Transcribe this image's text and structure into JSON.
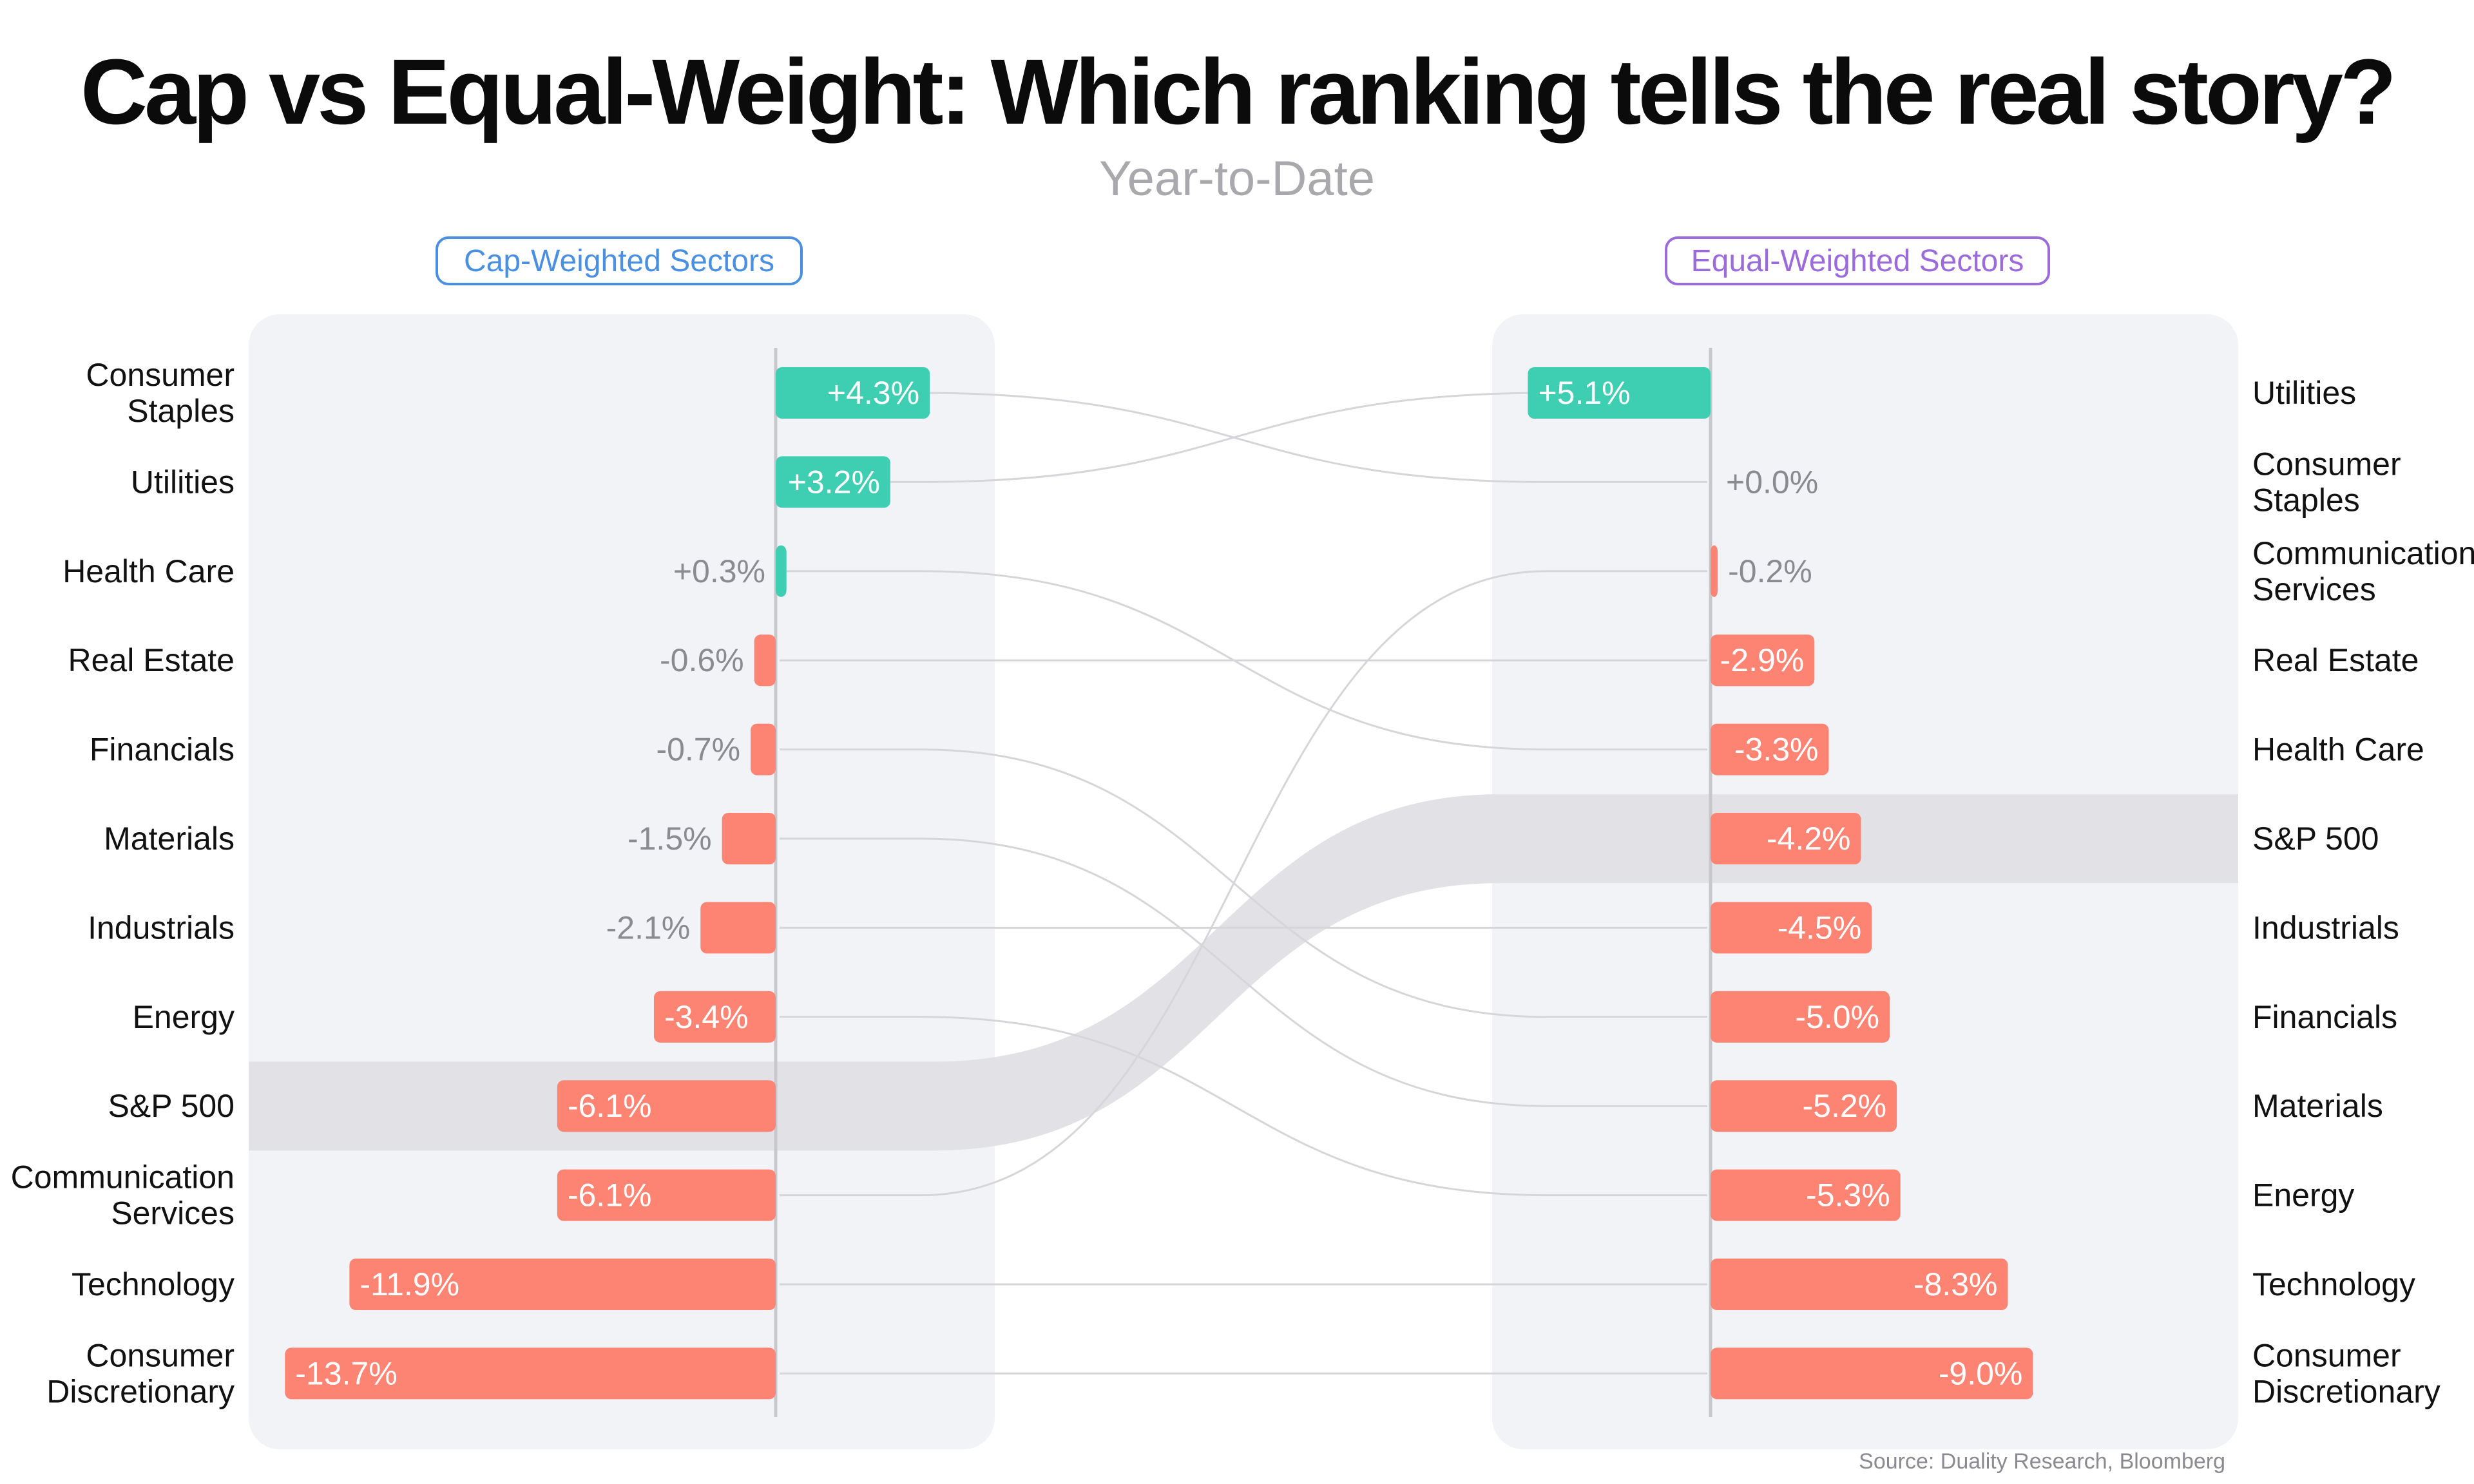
{
  "header": {
    "title": "Cap vs Equal-Weight: Which ranking tells the real story?",
    "subtitle": "Year-to-Date"
  },
  "panels": {
    "left_title": "Cap-Weighted Sectors",
    "right_title": "Equal-Weighted Sectors"
  },
  "footer": {
    "source": "Source: Duality Research, Bloomberg"
  },
  "colors": {
    "positive": "#3ecfb2",
    "negative": "#fd8473",
    "panel_bg": "#f1f3f6",
    "highlight": "#e2e2e6",
    "connector": "#d6d6da",
    "axis": "#c8c8cc",
    "outside_label": "#8a8a90"
  },
  "chart_data": {
    "type": "bar",
    "unit": "%",
    "highlight": "S&P 500",
    "left": {
      "title": "Cap-Weighted Sectors",
      "rows": [
        {
          "category": "Consumer Staples",
          "lines": [
            "Consumer",
            "Staples"
          ],
          "value": 4.3,
          "label": "+4.3%"
        },
        {
          "category": "Utilities",
          "lines": [
            "Utilities"
          ],
          "value": 3.2,
          "label": "+3.2%"
        },
        {
          "category": "Health Care",
          "lines": [
            "Health Care"
          ],
          "value": 0.3,
          "label": "+0.3%"
        },
        {
          "category": "Real Estate",
          "lines": [
            "Real Estate"
          ],
          "value": -0.6,
          "label": "-0.6%"
        },
        {
          "category": "Financials",
          "lines": [
            "Financials"
          ],
          "value": -0.7,
          "label": "-0.7%"
        },
        {
          "category": "Materials",
          "lines": [
            "Materials"
          ],
          "value": -1.5,
          "label": "-1.5%"
        },
        {
          "category": "Industrials",
          "lines": [
            "Industrials"
          ],
          "value": -2.1,
          "label": "-2.1%"
        },
        {
          "category": "Energy",
          "lines": [
            "Energy"
          ],
          "value": -3.4,
          "label": "-3.4%"
        },
        {
          "category": "S&P 500",
          "lines": [
            "S&P 500"
          ],
          "value": -6.1,
          "label": "-6.1%"
        },
        {
          "category": "Communication Services",
          "lines": [
            "Communication",
            "Services"
          ],
          "value": -6.1,
          "label": "-6.1%"
        },
        {
          "category": "Technology",
          "lines": [
            "Technology"
          ],
          "value": -11.9,
          "label": "-11.9%"
        },
        {
          "category": "Consumer Discretionary",
          "lines": [
            "Consumer",
            "Discretionary"
          ],
          "value": -13.7,
          "label": "-13.7%"
        }
      ]
    },
    "right": {
      "title": "Equal-Weighted Sectors",
      "rows": [
        {
          "category": "Utilities",
          "lines": [
            "Utilities"
          ],
          "value": 5.1,
          "label": "+5.1%"
        },
        {
          "category": "Consumer Staples",
          "lines": [
            "Consumer",
            "Staples"
          ],
          "value": 0.0,
          "label": "+0.0%"
        },
        {
          "category": "Communication Services",
          "lines": [
            "Communication",
            "Services"
          ],
          "value": -0.2,
          "label": "-0.2%"
        },
        {
          "category": "Real Estate",
          "lines": [
            "Real Estate"
          ],
          "value": -2.9,
          "label": "-2.9%"
        },
        {
          "category": "Health Care",
          "lines": [
            "Health Care"
          ],
          "value": -3.3,
          "label": "-3.3%"
        },
        {
          "category": "S&P 500",
          "lines": [
            "S&P 500"
          ],
          "value": -4.2,
          "label": "-4.2%"
        },
        {
          "category": "Industrials",
          "lines": [
            "Industrials"
          ],
          "value": -4.5,
          "label": "-4.5%"
        },
        {
          "category": "Financials",
          "lines": [
            "Financials"
          ],
          "value": -5.0,
          "label": "-5.0%"
        },
        {
          "category": "Materials",
          "lines": [
            "Materials"
          ],
          "value": -5.2,
          "label": "-5.2%"
        },
        {
          "category": "Energy",
          "lines": [
            "Energy"
          ],
          "value": -5.3,
          "label": "-5.3%"
        },
        {
          "category": "Technology",
          "lines": [
            "Technology"
          ],
          "value": -8.3,
          "label": "-8.3%"
        },
        {
          "category": "Consumer Discretionary",
          "lines": [
            "Consumer",
            "Discretionary"
          ],
          "value": -9.0,
          "label": "-9.0%"
        }
      ]
    }
  }
}
